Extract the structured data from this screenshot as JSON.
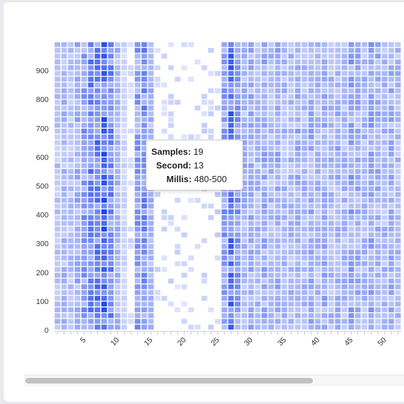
{
  "tooltip": {
    "samples_label": "Samples:",
    "samples_value": "19",
    "second_label": "Second:",
    "second_value": "13",
    "millis_label": "Millis:",
    "millis_value": "480-500"
  },
  "chart_data": {
    "type": "heatmap",
    "title": "",
    "xlabel": "",
    "ylabel": "",
    "x_range": [
      1,
      52
    ],
    "y_range": [
      0,
      1000
    ],
    "y_bucket_ms": 20,
    "x_ticks": [
      "5",
      "10",
      "15",
      "20",
      "25",
      "30",
      "35",
      "40",
      "45",
      "50"
    ],
    "y_ticks": [
      "0",
      "100",
      "200",
      "300",
      "400",
      "500",
      "600",
      "700",
      "800",
      "900"
    ],
    "color_low": "#eef0fe",
    "color_high": "#1f45ea",
    "column_intensity": {
      "1": 0.25,
      "2": 0.3,
      "3": 0.25,
      "4": 0.35,
      "5": 0.45,
      "6": 0.55,
      "7": 0.6,
      "8": 0.75,
      "9": 0.55,
      "10": 0.3,
      "11": 0.15,
      "12": 0.05,
      "13": 0.45,
      "14": 0.5,
      "15": 0.3,
      "16": 0.08,
      "17": 0.05,
      "18": 0.06,
      "19": 0.06,
      "20": 0.05,
      "21": 0.06,
      "22": 0.07,
      "23": 0.08,
      "24": 0.07,
      "25": 0.1,
      "26": 0.45,
      "27": 0.65,
      "28": 0.45,
      "29": 0.3,
      "30": 0.35,
      "31": 0.3,
      "32": 0.35,
      "33": 0.3,
      "34": 0.35,
      "35": 0.3,
      "36": 0.3,
      "37": 0.35,
      "38": 0.3,
      "39": 0.35,
      "40": 0.3,
      "41": 0.35,
      "42": 0.3,
      "43": 0.35,
      "44": 0.3,
      "45": 0.4,
      "46": 0.35,
      "47": 0.3,
      "48": 0.4,
      "49": 0.35,
      "50": 0.3,
      "51": 0.35,
      "52": 0.3
    },
    "highlighted_cell": {
      "second": 13,
      "millis": "480-500",
      "samples": 19
    }
  }
}
